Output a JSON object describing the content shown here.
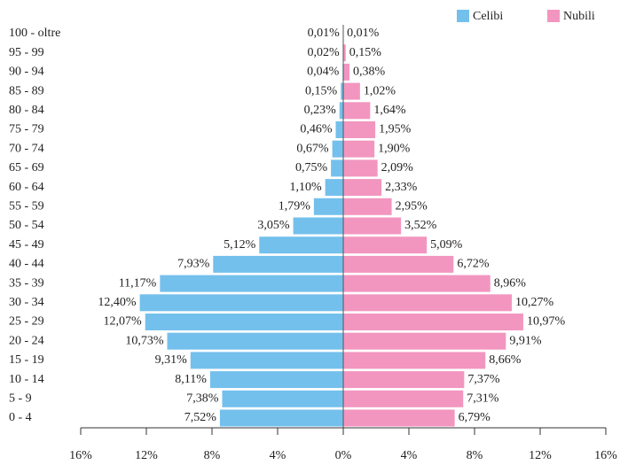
{
  "chart_data": {
    "type": "pyramid",
    "categories": [
      "0 - 4",
      "5 - 9",
      "10 - 14",
      "15 - 19",
      "20 - 24",
      "25 - 29",
      "30 - 34",
      "35 - 39",
      "40 - 44",
      "45 - 49",
      "50 - 54",
      "55 - 59",
      "60 - 64",
      "65 - 69",
      "70 - 74",
      "75 - 79",
      "80 - 84",
      "85 - 89",
      "90 - 94",
      "95 - 99",
      "100 - oltre"
    ],
    "series": [
      {
        "name": "Celibi",
        "color": "#74c0ec",
        "values": [
          7.52,
          7.38,
          8.11,
          9.31,
          10.73,
          12.07,
          12.4,
          11.17,
          7.93,
          5.12,
          3.05,
          1.79,
          1.1,
          0.75,
          0.67,
          0.46,
          0.23,
          0.15,
          0.04,
          0.02,
          0.01
        ],
        "value_labels": [
          "7,52%",
          "7,38%",
          "8,11%",
          "9,31%",
          "10,73%",
          "12,07%",
          "12,40%",
          "11,17%",
          "7,93%",
          "5,12%",
          "3,05%",
          "1,79%",
          "1,10%",
          "0,75%",
          "0,67%",
          "0,46%",
          "0,23%",
          "0,15%",
          "0,04%",
          "0,02%",
          "0,01%"
        ]
      },
      {
        "name": "Nubili",
        "color": "#f296c0",
        "values": [
          6.79,
          7.31,
          7.37,
          8.66,
          9.91,
          10.97,
          10.27,
          8.96,
          6.72,
          5.09,
          3.52,
          2.95,
          2.33,
          2.09,
          1.9,
          1.95,
          1.64,
          1.02,
          0.38,
          0.15,
          0.01
        ],
        "value_labels": [
          "6,79%",
          "7,31%",
          "7,37%",
          "8,66%",
          "9,91%",
          "10,97%",
          "10,27%",
          "8,96%",
          "6,72%",
          "5,09%",
          "3,52%",
          "2,95%",
          "2,33%",
          "2,09%",
          "1,90%",
          "1,95%",
          "1,64%",
          "1,02%",
          "0,38%",
          "0,15%",
          "0,01%"
        ]
      }
    ],
    "xlim": [
      -16,
      16
    ],
    "xticks": [
      {
        "value": -16,
        "label": "16%"
      },
      {
        "value": -12,
        "label": "12%"
      },
      {
        "value": -8,
        "label": "8%"
      },
      {
        "value": -4,
        "label": "4%"
      },
      {
        "value": 0,
        "label": "0%"
      },
      {
        "value": 4,
        "label": "4%"
      },
      {
        "value": 8,
        "label": "8%"
      },
      {
        "value": 12,
        "label": "12%"
      },
      {
        "value": 16,
        "label": "16%"
      }
    ],
    "legend": "top-right"
  }
}
